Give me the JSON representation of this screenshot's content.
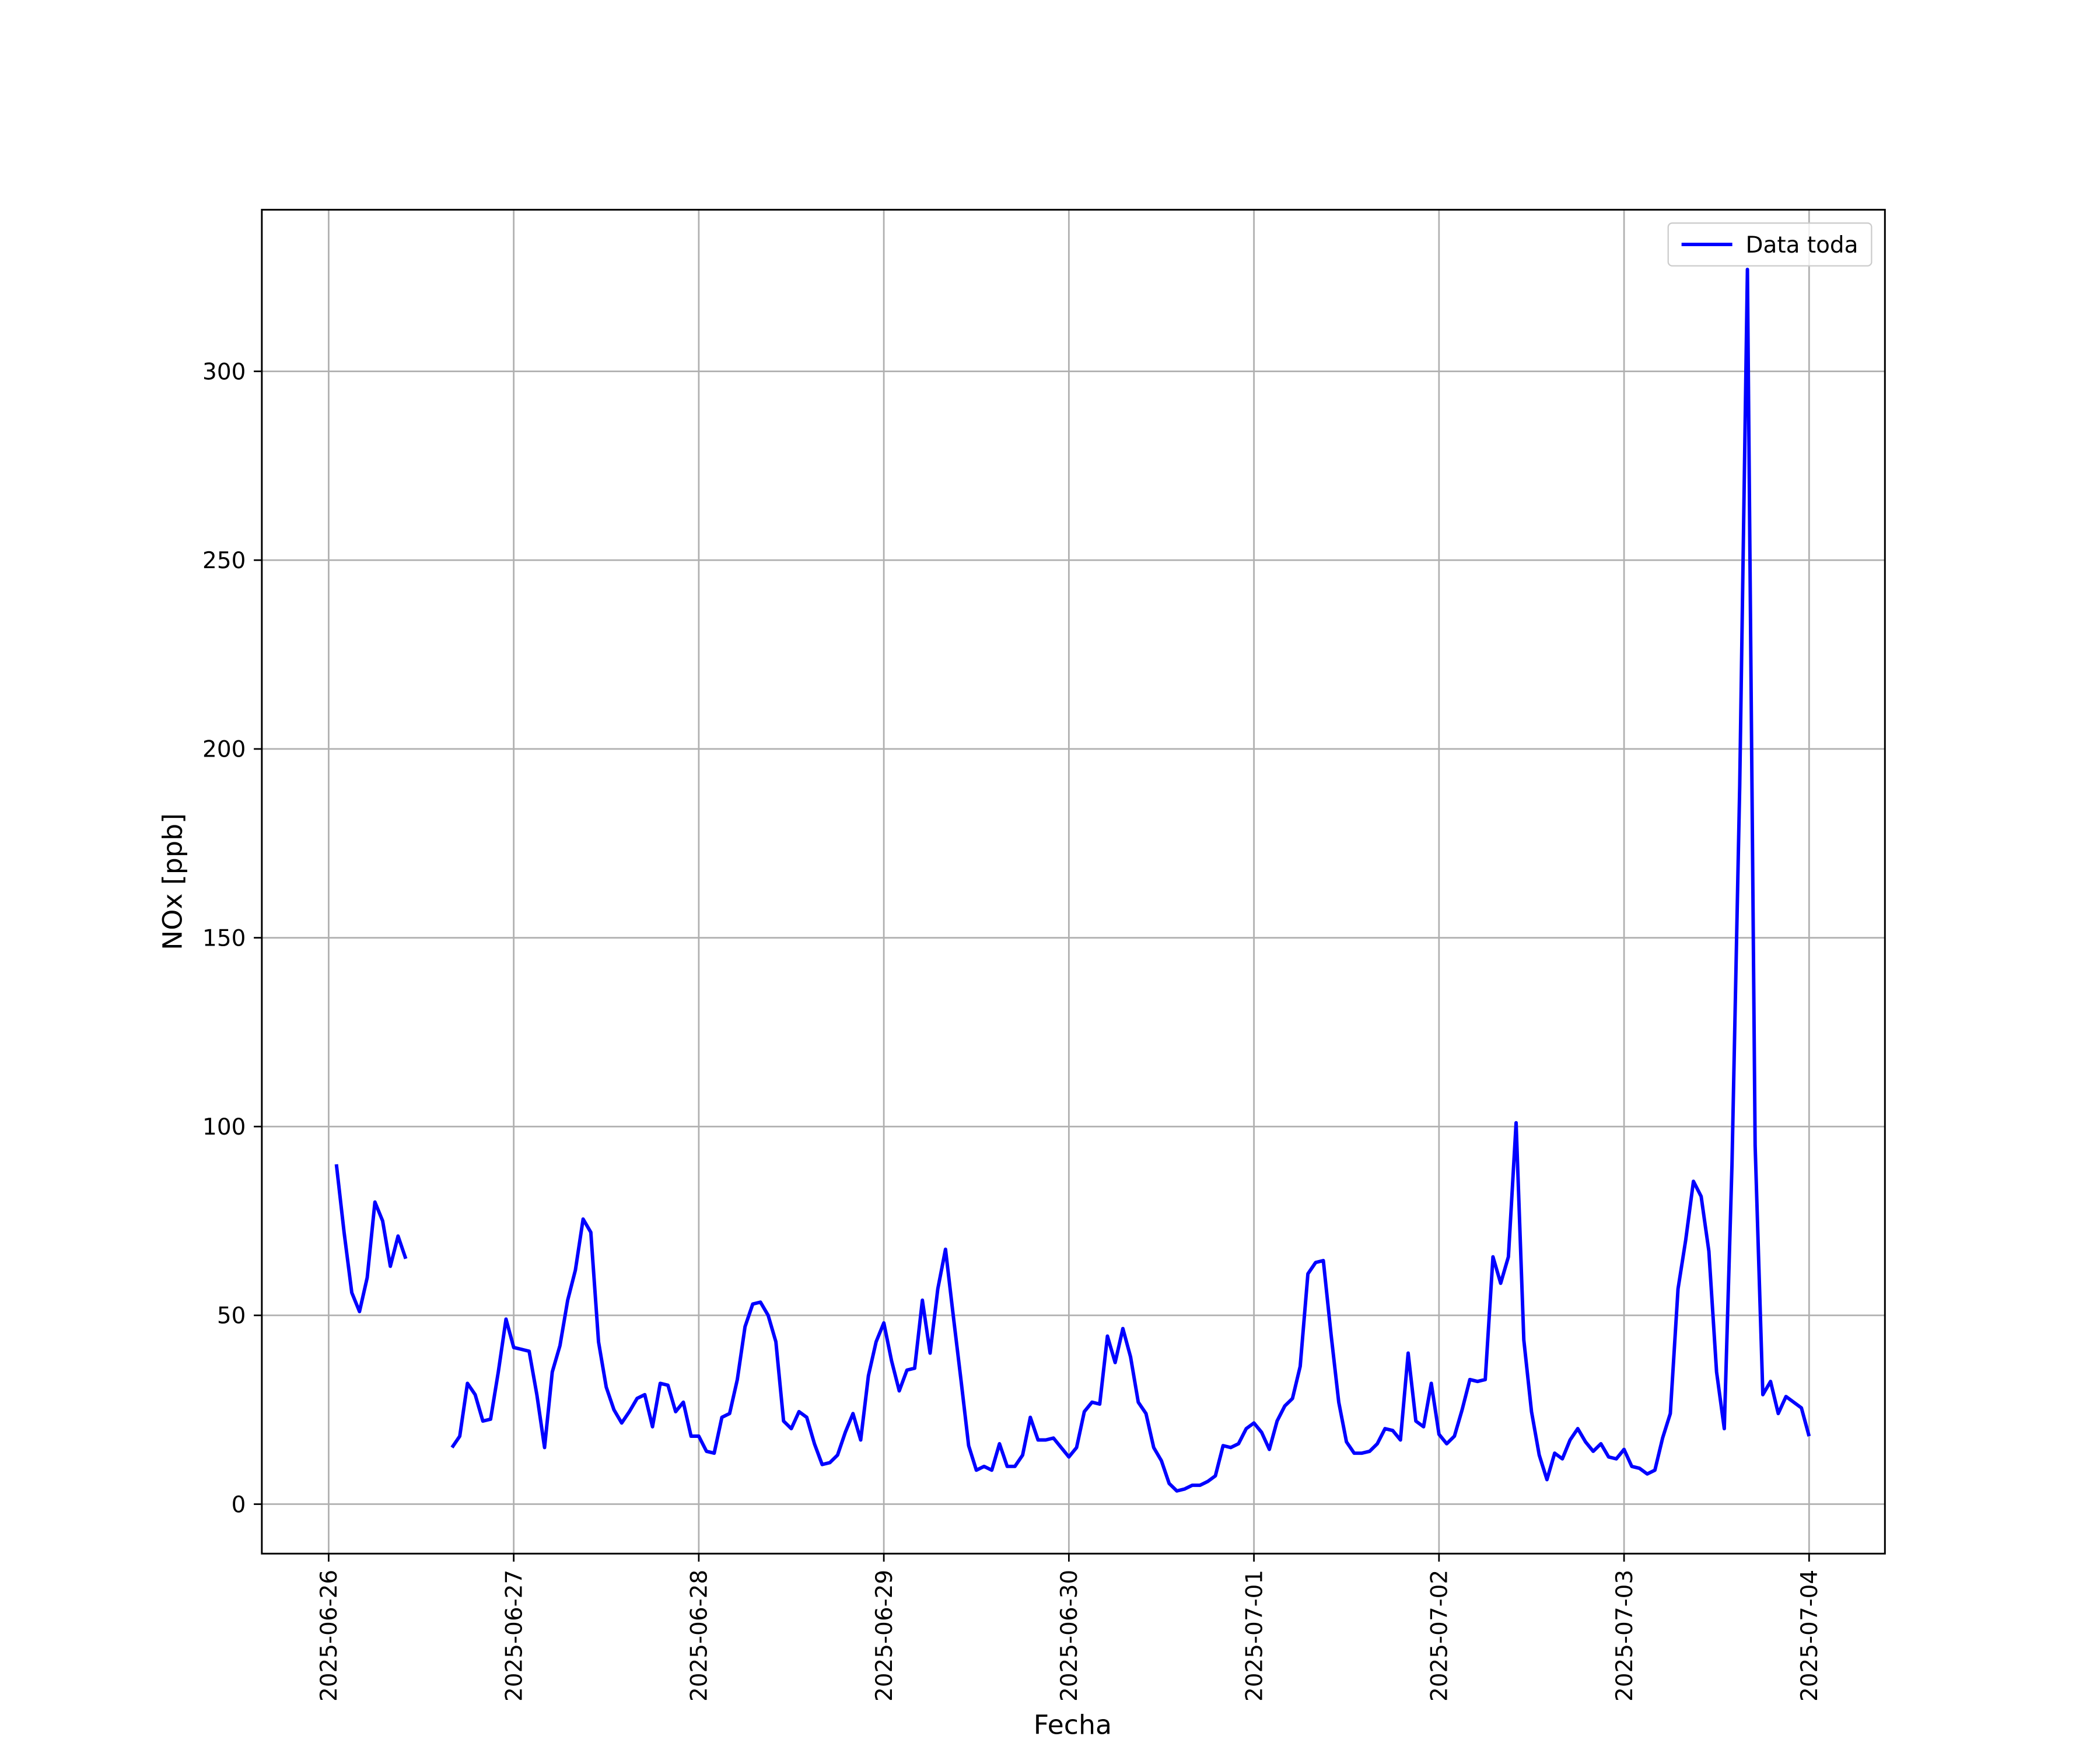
{
  "chart_data": {
    "type": "line",
    "x_label": "Fecha",
    "y_label": "NOx [ppb]",
    "x": [
      "2025-06-26 01:00",
      "2025-06-26 02:00",
      "2025-06-26 03:00",
      "2025-06-26 04:00",
      "2025-06-26 05:00",
      "2025-06-26 06:00",
      "2025-06-26 07:00",
      "2025-06-26 08:00",
      "2025-06-26 09:00",
      "2025-06-26 10:00",
      "2025-06-26 11:00",
      "2025-06-26 16:00",
      "2025-06-26 17:00",
      "2025-06-26 18:00",
      "2025-06-26 19:00",
      "2025-06-26 20:00",
      "2025-06-26 21:00",
      "2025-06-26 22:00",
      "2025-06-26 23:00",
      "2025-06-27 00:00",
      "2025-06-27 01:00",
      "2025-06-27 02:00",
      "2025-06-27 03:00",
      "2025-06-27 04:00",
      "2025-06-27 05:00",
      "2025-06-27 06:00",
      "2025-06-27 07:00",
      "2025-06-27 08:00",
      "2025-06-27 09:00",
      "2025-06-27 10:00",
      "2025-06-27 11:00",
      "2025-06-27 12:00",
      "2025-06-27 13:00",
      "2025-06-27 14:00",
      "2025-06-27 15:00",
      "2025-06-27 16:00",
      "2025-06-27 17:00",
      "2025-06-27 18:00",
      "2025-06-27 19:00",
      "2025-06-27 20:00",
      "2025-06-27 21:00",
      "2025-06-27 22:00",
      "2025-06-27 23:00",
      "2025-06-28 00:00",
      "2025-06-28 01:00",
      "2025-06-28 02:00",
      "2025-06-28 03:00",
      "2025-06-28 04:00",
      "2025-06-28 05:00",
      "2025-06-28 06:00",
      "2025-06-28 07:00",
      "2025-06-28 08:00",
      "2025-06-28 09:00",
      "2025-06-28 10:00",
      "2025-06-28 11:00",
      "2025-06-28 12:00",
      "2025-06-28 13:00",
      "2025-06-28 14:00",
      "2025-06-28 15:00",
      "2025-06-28 16:00",
      "2025-06-28 17:00",
      "2025-06-28 18:00",
      "2025-06-28 19:00",
      "2025-06-28 20:00",
      "2025-06-28 21:00",
      "2025-06-28 22:00",
      "2025-06-28 23:00",
      "2025-06-29 00:00",
      "2025-06-29 01:00",
      "2025-06-29 02:00",
      "2025-06-29 03:00",
      "2025-06-29 04:00",
      "2025-06-29 05:00",
      "2025-06-29 06:00",
      "2025-06-29 07:00",
      "2025-06-29 08:00",
      "2025-06-29 09:00",
      "2025-06-29 10:00",
      "2025-06-29 11:00",
      "2025-06-29 12:00",
      "2025-06-29 13:00",
      "2025-06-29 14:00",
      "2025-06-29 15:00",
      "2025-06-29 16:00",
      "2025-06-29 17:00",
      "2025-06-29 18:00",
      "2025-06-29 19:00",
      "2025-06-29 20:00",
      "2025-06-29 21:00",
      "2025-06-29 22:00",
      "2025-06-29 23:00",
      "2025-06-30 00:00",
      "2025-06-30 01:00",
      "2025-06-30 02:00",
      "2025-06-30 03:00",
      "2025-06-30 04:00",
      "2025-06-30 05:00",
      "2025-06-30 06:00",
      "2025-06-30 07:00",
      "2025-06-30 08:00",
      "2025-06-30 09:00",
      "2025-06-30 10:00",
      "2025-06-30 11:00",
      "2025-06-30 12:00",
      "2025-06-30 13:00",
      "2025-06-30 14:00",
      "2025-06-30 15:00",
      "2025-06-30 16:00",
      "2025-06-30 17:00",
      "2025-06-30 18:00",
      "2025-06-30 19:00",
      "2025-06-30 20:00",
      "2025-06-30 21:00",
      "2025-06-30 22:00",
      "2025-06-30 23:00",
      "2025-07-01 00:00",
      "2025-07-01 01:00",
      "2025-07-01 02:00",
      "2025-07-01 03:00",
      "2025-07-01 04:00",
      "2025-07-01 05:00",
      "2025-07-01 06:00",
      "2025-07-01 07:00",
      "2025-07-01 08:00",
      "2025-07-01 09:00",
      "2025-07-01 10:00",
      "2025-07-01 11:00",
      "2025-07-01 12:00",
      "2025-07-01 13:00",
      "2025-07-01 14:00",
      "2025-07-01 15:00",
      "2025-07-01 16:00",
      "2025-07-01 17:00",
      "2025-07-01 18:00",
      "2025-07-01 19:00",
      "2025-07-01 20:00",
      "2025-07-01 21:00",
      "2025-07-01 22:00",
      "2025-07-01 23:00",
      "2025-07-02 00:00",
      "2025-07-02 01:00",
      "2025-07-02 02:00",
      "2025-07-02 03:00",
      "2025-07-02 04:00",
      "2025-07-02 05:00",
      "2025-07-02 06:00",
      "2025-07-02 07:00",
      "2025-07-02 08:00",
      "2025-07-02 09:00",
      "2025-07-02 10:00",
      "2025-07-02 11:00",
      "2025-07-02 12:00",
      "2025-07-02 13:00",
      "2025-07-02 14:00",
      "2025-07-02 15:00",
      "2025-07-02 16:00",
      "2025-07-02 17:00",
      "2025-07-02 18:00",
      "2025-07-02 19:00",
      "2025-07-02 20:00",
      "2025-07-02 21:00",
      "2025-07-02 22:00",
      "2025-07-02 23:00",
      "2025-07-03 00:00",
      "2025-07-03 01:00",
      "2025-07-03 02:00",
      "2025-07-03 03:00",
      "2025-07-03 04:00",
      "2025-07-03 05:00",
      "2025-07-03 06:00",
      "2025-07-03 07:00",
      "2025-07-03 08:00",
      "2025-07-03 09:00",
      "2025-07-03 10:00",
      "2025-07-03 11:00",
      "2025-07-03 12:00",
      "2025-07-03 13:00",
      "2025-07-03 14:00",
      "2025-07-03 15:00",
      "2025-07-03 16:00",
      "2025-07-03 17:00",
      "2025-07-03 18:00",
      "2025-07-03 19:00",
      "2025-07-03 20:00",
      "2025-07-03 21:00",
      "2025-07-03 22:00",
      "2025-07-03 23:00",
      "2025-07-04 00:00"
    ],
    "series": [
      {
        "name": "Data toda",
        "color": "#0000ff",
        "values": [
          90,
          72,
          56,
          51,
          60,
          80,
          75,
          63,
          71,
          65,
          null,
          15,
          18,
          32,
          29,
          22,
          22.5,
          35,
          49,
          41.5,
          41,
          40.5,
          29,
          15,
          35,
          42,
          54,
          62,
          75.5,
          72,
          43,
          31,
          25,
          21.5,
          24.5,
          28,
          29,
          20.5,
          32,
          31.5,
          24.5,
          27,
          18,
          18,
          14,
          13.5,
          23,
          24,
          33,
          47,
          53,
          53.5,
          50,
          43,
          22,
          20,
          24.5,
          23,
          16,
          10.5,
          11,
          13,
          19,
          24,
          17,
          34,
          43,
          48,
          38,
          30,
          35.5,
          36,
          54,
          40,
          57,
          67.5,
          50,
          33,
          15.5,
          9,
          10,
          9,
          16,
          10,
          10,
          13,
          23,
          17,
          17,
          17.5,
          15,
          12.5,
          15,
          24.5,
          27,
          26.5,
          44.5,
          37.5,
          46.5,
          39,
          27,
          24,
          15,
          11.5,
          5.5,
          3.5,
          4,
          5,
          5,
          6,
          7.5,
          15.5,
          15,
          16,
          20,
          21.5,
          19,
          14.5,
          22,
          26,
          28,
          36.5,
          61,
          64,
          64.5,
          45,
          27,
          16.5,
          13.5,
          13.5,
          14,
          16,
          20,
          19.5,
          17,
          40,
          22,
          20.5,
          32,
          18.5,
          16,
          18,
          25,
          33,
          32.5,
          33,
          65.5,
          58.5,
          65.5,
          101,
          43.5,
          24.5,
          13,
          6.5,
          13.5,
          12,
          17,
          20,
          16.5,
          14,
          16,
          12.5,
          12,
          14.5,
          10,
          9.5,
          8,
          9,
          17.5,
          24,
          57,
          70,
          85.5,
          81.5,
          67,
          35,
          20,
          90,
          190,
          327,
          95,
          29,
          32.5,
          24,
          28.5,
          27,
          25.5,
          18
        ]
      }
    ],
    "xlim": [
      "2025-06-25 15:20",
      "2025-07-04 09:50"
    ],
    "xticks": [
      "2025-06-26",
      "2025-06-27",
      "2025-06-28",
      "2025-06-29",
      "2025-06-30",
      "2025-07-01",
      "2025-07-02",
      "2025-07-03",
      "2025-07-04"
    ],
    "ylim": [
      -13.1,
      342.8
    ],
    "yticks": [
      0,
      50,
      100,
      150,
      200,
      250,
      300
    ],
    "grid": true,
    "legend": "upper right"
  }
}
